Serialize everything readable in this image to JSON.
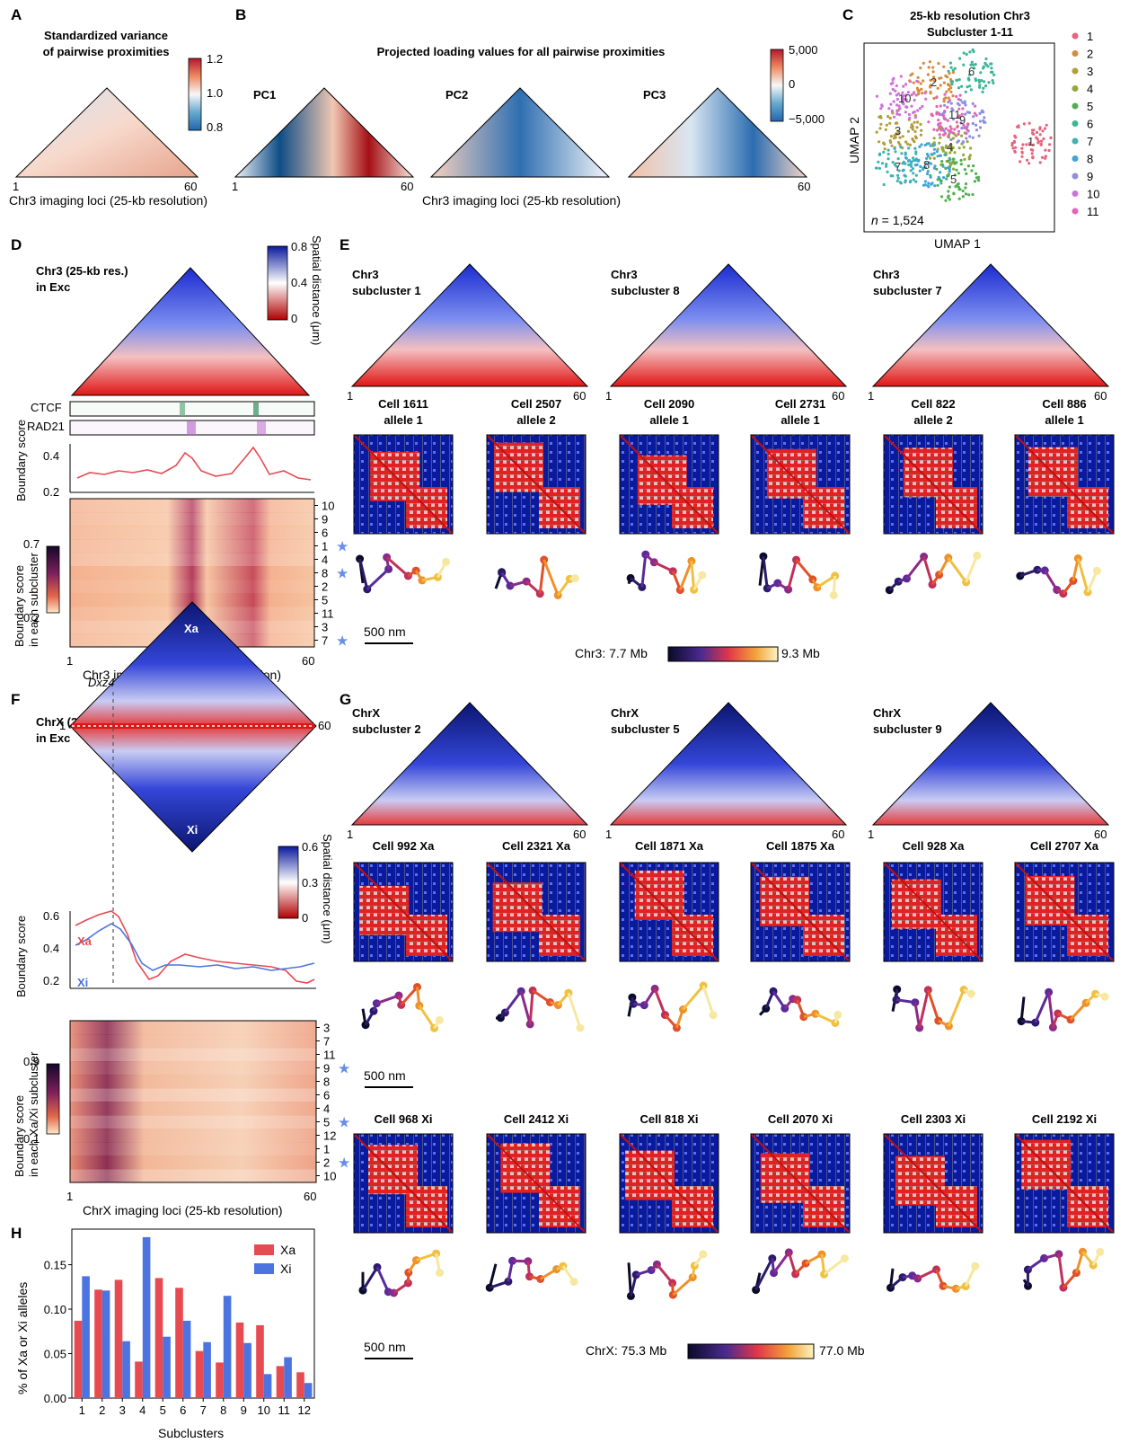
{
  "panels": {
    "A": {
      "label": "A",
      "title1": "Standardized variance",
      "title2": "of pairwise proximities",
      "cbar_ticks": [
        "1.2",
        "1.0",
        "0.8"
      ],
      "xstart": "1",
      "xend": "60",
      "xlabel": "Chr3 imaging loci (25-kb resolution)"
    },
    "B": {
      "label": "B",
      "title": "Projected loading values for all pairwise proximities",
      "pcs": [
        "PC1",
        "PC2",
        "PC3"
      ],
      "cbar_ticks": [
        "5,000",
        "0",
        "−5,000"
      ],
      "xstart": "1",
      "xend": "60",
      "xlabel": "Chr3 imaging loci (25-kb resolution)"
    },
    "C": {
      "label": "C",
      "title1": "25-kb resolution Chr3",
      "title2": "Subcluster 1-11",
      "xlabel": "UMAP 1",
      "ylabel": "UMAP 2",
      "n_label": "n",
      "n_value": " = 1,524"
    },
    "D": {
      "label": "D",
      "title1": "Chr3 (25-kb res.)",
      "title2": "in Exc",
      "cbar_ticks": [
        "0.8",
        "0.4",
        "0"
      ],
      "cbar_label": "Spatial distance (μm)",
      "track1": "CTCF",
      "track2": "RAD21",
      "score_ylabel": "Boundary score",
      "score_ticks": [
        "0.4",
        "0.2"
      ],
      "heat_ylabel1": "Boundary score",
      "heat_ylabel2": "in each subcluster",
      "heat_cbar_ticks": [
        "0.7",
        "0.2"
      ],
      "heat_rows": [
        "10",
        "9",
        "6",
        "1",
        "4",
        "8",
        "2",
        "5",
        "11",
        "3",
        "7"
      ],
      "star_rows": [
        "1",
        "8",
        "7"
      ],
      "xstart": "1",
      "xend": "60",
      "xlabel": "Chr3 imaging loci (25-kb resolution)"
    },
    "E": {
      "label": "E",
      "mean_maps": [
        {
          "l1": "Chr3",
          "l2": "subcluster 1"
        },
        {
          "l1": "Chr3",
          "l2": "subcluster 8"
        },
        {
          "l1": "Chr3",
          "l2": "subcluster 7"
        }
      ],
      "xstart": "1",
      "xend": "60",
      "cells": [
        {
          "l1": "Cell 1611",
          "l2": "allele 1"
        },
        {
          "l1": "Cell 2507",
          "l2": "allele 2"
        },
        {
          "l1": "Cell 2090",
          "l2": "allele 1"
        },
        {
          "l1": "Cell 2731",
          "l2": "allele 1"
        },
        {
          "l1": "Cell 822",
          "l2": "allele 2"
        },
        {
          "l1": "Cell 886",
          "l2": "allele 1"
        }
      ],
      "scale": "500 nm",
      "cmap_prefix": "Chr3: 7.7 Mb",
      "cmap_suffix": "9.3 Mb"
    },
    "F": {
      "label": "F",
      "title1": "ChrX (25-kb res.)",
      "title2": "in Exc",
      "xa": "Xa",
      "xi": "Xi",
      "dxz4": "Dxz4",
      "mid_start": "1",
      "mid_end": "60",
      "cbar_ticks": [
        "0.6",
        "0.3",
        "0"
      ],
      "cbar_label": "Spatial distance (μm)",
      "score_ylabel": "Boundary score",
      "score_ticks": [
        "0.6",
        "0.4",
        "0.2"
      ],
      "legend_xa": "Xa",
      "legend_xi": "Xi",
      "heat_ylabel1": "Boundary score",
      "heat_ylabel2": "in each Xa/Xi subcluster",
      "heat_cbar_ticks": [
        "0.9",
        "0.1"
      ],
      "heat_rows": [
        "3",
        "7",
        "11",
        "9",
        "8",
        "6",
        "4",
        "5",
        "12",
        "1",
        "2",
        "10"
      ],
      "star_rows": [
        "9",
        "5",
        "2"
      ],
      "xstart": "1",
      "xend": "60",
      "xlabel": "ChrX imaging loci (25-kb resolution)"
    },
    "G": {
      "label": "G",
      "mean_maps": [
        {
          "l1": "ChrX",
          "l2": "subcluster 2"
        },
        {
          "l1": "ChrX",
          "l2": "subcluster 5"
        },
        {
          "l1": "ChrX",
          "l2": "subcluster 9"
        }
      ],
      "xstart": "1",
      "xend": "60",
      "cells_xa": [
        "Cell 992 Xa",
        "Cell 2321 Xa",
        "Cell 1871 Xa",
        "Cell 1875 Xa",
        "Cell 928 Xa",
        "Cell 2707 Xa"
      ],
      "cells_xi": [
        "Cell 968 Xi",
        "Cell 2412 Xi",
        "Cell 818 Xi",
        "Cell 2070 Xi",
        "Cell 2303 Xi",
        "Cell 2192 Xi"
      ],
      "scale1": "500 nm",
      "scale2": "500 nm",
      "cmap_prefix": "ChrX: 75.3 Mb",
      "cmap_suffix": "77.0 Mb"
    },
    "H": {
      "label": "H",
      "ylabel": "% of Xa or Xi alleles",
      "xlabel": "Subclusters",
      "yticks": [
        "0.00",
        "0.05",
        "0.10",
        "0.15"
      ]
    }
  },
  "umap_legend": [
    "1",
    "2",
    "3",
    "4",
    "5",
    "6",
    "7",
    "8",
    "9",
    "10",
    "11"
  ],
  "umap_colors": [
    "#e8637b",
    "#d98a3a",
    "#b39c3b",
    "#96a83c",
    "#4fb04f",
    "#3db597",
    "#3fb3b1",
    "#41a5d6",
    "#8f8fe0",
    "#cf6fe0",
    "#e564b8"
  ],
  "umap_cluster_labels": [
    "1",
    "2",
    "3",
    "4",
    "5",
    "6",
    "7",
    "8",
    "9",
    "10",
    "11"
  ],
  "colors": {
    "xa": "#e84a52",
    "xi": "#4c74e0",
    "star": "#6a8ee6"
  },
  "chart_data": {
    "type": "bar",
    "categories": [
      "1",
      "2",
      "3",
      "4",
      "5",
      "6",
      "7",
      "8",
      "9",
      "10",
      "11",
      "12"
    ],
    "series": [
      {
        "name": "Xa",
        "values": [
          0.087,
          0.122,
          0.133,
          0.041,
          0.135,
          0.124,
          0.053,
          0.04,
          0.085,
          0.082,
          0.036,
          0.029
        ]
      },
      {
        "name": "Xi",
        "values": [
          0.137,
          0.121,
          0.064,
          0.181,
          0.069,
          0.087,
          0.063,
          0.115,
          0.062,
          0.027,
          0.046,
          0.017
        ]
      }
    ],
    "xlabel": "Subclusters",
    "ylabel": "% of Xa or Xi alleles",
    "ylim": [
      0,
      0.19
    ],
    "legend": "top-right",
    "grid": false
  }
}
